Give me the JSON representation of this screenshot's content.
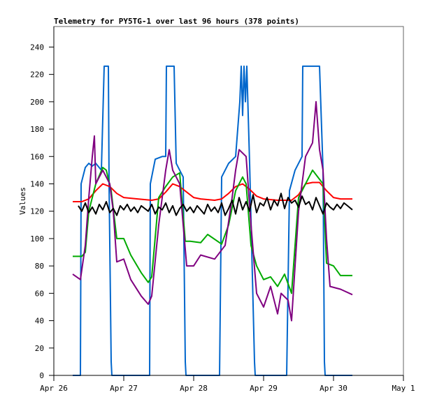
{
  "chart_data": {
    "type": "line",
    "title": "Telemetry for PY5TG-1 over last 96 hours (378 points)",
    "xlabel": "",
    "ylabel": "Values",
    "xlim": [
      0,
      5
    ],
    "ylim": [
      0,
      255
    ],
    "x_unit": "days since Apr 26",
    "x_ticks": [
      {
        "value": 0,
        "label": "Apr 26"
      },
      {
        "value": 1,
        "label": "Apr 27"
      },
      {
        "value": 2,
        "label": "Apr 28"
      },
      {
        "value": 3,
        "label": "Apr 29"
      },
      {
        "value": 4,
        "label": "Apr 30"
      },
      {
        "value": 5,
        "label": "May 1"
      }
    ],
    "y_ticks": [
      0,
      20,
      40,
      60,
      80,
      100,
      120,
      140,
      160,
      180,
      200,
      220,
      240
    ],
    "grid": false,
    "series": [
      {
        "name": "blue",
        "color": "#0066cc",
        "x": [
          0.27,
          0.38,
          0.39,
          0.45,
          0.5,
          0.55,
          0.6,
          0.68,
          0.72,
          0.78,
          0.79,
          0.82,
          0.83,
          1.37,
          1.38,
          1.45,
          1.55,
          1.6,
          1.61,
          1.72,
          1.75,
          1.85,
          1.88,
          1.89,
          2.37,
          2.4,
          2.5,
          2.6,
          2.66,
          2.68,
          2.7,
          2.72,
          2.74,
          2.76,
          2.8,
          2.87,
          2.88,
          3.33,
          3.37,
          3.45,
          3.55,
          3.56,
          3.8,
          3.85,
          3.87,
          3.88,
          4.27
        ],
        "y": [
          0,
          0,
          140,
          152,
          155,
          153,
          155,
          150,
          226,
          226,
          140,
          10,
          0,
          0,
          140,
          158,
          160,
          160,
          226,
          226,
          155,
          145,
          10,
          0,
          0,
          145,
          155,
          160,
          200,
          226,
          190,
          226,
          200,
          226,
          155,
          10,
          0,
          0,
          135,
          150,
          160,
          226,
          226,
          150,
          10,
          0,
          0
        ]
      },
      {
        "name": "red",
        "color": "#ff0000",
        "x": [
          0.27,
          0.4,
          0.5,
          0.6,
          0.7,
          0.8,
          0.9,
          1.0,
          1.2,
          1.4,
          1.5,
          1.6,
          1.7,
          1.8,
          1.9,
          2.0,
          2.1,
          2.3,
          2.4,
          2.5,
          2.6,
          2.7,
          2.8,
          2.9,
          3.0,
          3.2,
          3.4,
          3.5,
          3.6,
          3.7,
          3.8,
          3.9,
          4.0,
          4.1,
          4.27
        ],
        "y": [
          127,
          127,
          129,
          135,
          140,
          138,
          133,
          130,
          129,
          128,
          129,
          134,
          140,
          138,
          134,
          130,
          129,
          128,
          129,
          133,
          138,
          140,
          136,
          131,
          129,
          128,
          128,
          132,
          140,
          141,
          141,
          135,
          130,
          129,
          129
        ]
      },
      {
        "name": "green",
        "color": "#00aa00",
        "x": [
          0.27,
          0.4,
          0.45,
          0.5,
          0.6,
          0.7,
          0.75,
          0.82,
          0.9,
          1.0,
          1.1,
          1.25,
          1.35,
          1.4,
          1.5,
          1.6,
          1.7,
          1.8,
          1.88,
          1.95,
          2.1,
          2.2,
          2.4,
          2.5,
          2.6,
          2.7,
          2.75,
          2.82,
          2.9,
          3.0,
          3.1,
          3.2,
          3.3,
          3.4,
          3.5,
          3.6,
          3.7,
          3.85,
          3.9,
          4.0,
          4.1,
          4.27
        ],
        "y": [
          87,
          87,
          90,
          120,
          140,
          152,
          150,
          135,
          100,
          100,
          88,
          75,
          68,
          72,
          130,
          138,
          145,
          148,
          98,
          98,
          97,
          103,
          96,
          110,
          135,
          145,
          140,
          95,
          80,
          70,
          72,
          65,
          74,
          60,
          130,
          140,
          150,
          140,
          82,
          80,
          73,
          73
        ]
      },
      {
        "name": "purple",
        "color": "#800080",
        "x": [
          0.27,
          0.38,
          0.45,
          0.5,
          0.55,
          0.58,
          0.6,
          0.7,
          0.8,
          0.85,
          0.9,
          1.0,
          1.1,
          1.25,
          1.35,
          1.4,
          1.5,
          1.6,
          1.65,
          1.7,
          1.8,
          1.9,
          2.0,
          2.1,
          2.3,
          2.45,
          2.55,
          2.6,
          2.65,
          2.75,
          2.82,
          2.9,
          3.0,
          3.1,
          3.2,
          3.25,
          3.35,
          3.4,
          3.5,
          3.6,
          3.7,
          3.75,
          3.8,
          3.85,
          3.9,
          3.95,
          4.1,
          4.27
        ],
        "y": [
          74,
          70,
          95,
          130,
          160,
          175,
          140,
          150,
          140,
          120,
          83,
          85,
          70,
          58,
          52,
          58,
          110,
          150,
          165,
          150,
          140,
          80,
          80,
          88,
          85,
          95,
          130,
          150,
          165,
          160,
          110,
          60,
          50,
          65,
          45,
          60,
          55,
          40,
          120,
          160,
          170,
          200,
          165,
          150,
          100,
          65,
          63,
          59
        ]
      },
      {
        "name": "black",
        "color": "#000000",
        "x": [
          0.35,
          0.4,
          0.45,
          0.5,
          0.55,
          0.6,
          0.65,
          0.7,
          0.75,
          0.8,
          0.85,
          0.9,
          0.95,
          1.0,
          1.05,
          1.1,
          1.15,
          1.2,
          1.25,
          1.3,
          1.35,
          1.4,
          1.45,
          1.5,
          1.55,
          1.6,
          1.65,
          1.7,
          1.75,
          1.8,
          1.85,
          1.9,
          1.95,
          2.0,
          2.05,
          2.1,
          2.15,
          2.2,
          2.25,
          2.3,
          2.35,
          2.4,
          2.45,
          2.5,
          2.55,
          2.6,
          2.65,
          2.7,
          2.75,
          2.8,
          2.85,
          2.9,
          2.95,
          3.0,
          3.05,
          3.1,
          3.15,
          3.2,
          3.25,
          3.3,
          3.35,
          3.4,
          3.45,
          3.5,
          3.55,
          3.6,
          3.65,
          3.7,
          3.75,
          3.8,
          3.85,
          3.9,
          3.95,
          4.0,
          4.05,
          4.1,
          4.15,
          4.2,
          4.27
        ],
        "y": [
          124,
          120,
          126,
          119,
          123,
          118,
          125,
          121,
          127,
          119,
          122,
          117,
          124,
          121,
          125,
          120,
          123,
          119,
          124,
          122,
          120,
          125,
          118,
          123,
          121,
          126,
          119,
          124,
          117,
          122,
          125,
          120,
          123,
          119,
          124,
          121,
          118,
          125,
          120,
          123,
          119,
          126,
          117,
          122,
          128,
          118,
          130,
          121,
          127,
          120,
          132,
          119,
          126,
          124,
          130,
          121,
          128,
          124,
          133,
          122,
          130,
          126,
          128,
          123,
          131,
          125,
          127,
          121,
          130,
          124,
          118,
          126,
          123,
          121,
          125,
          122,
          126,
          124,
          121
        ]
      }
    ]
  }
}
